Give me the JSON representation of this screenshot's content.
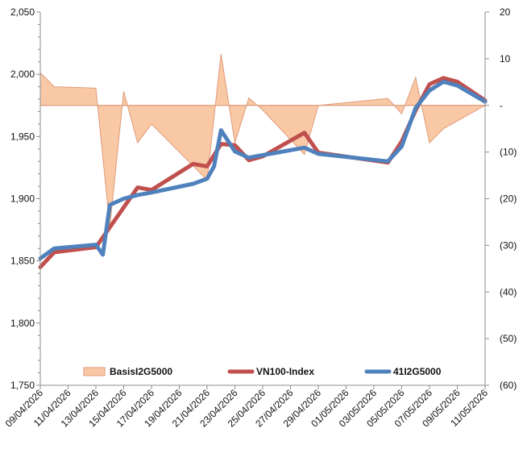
{
  "chart_data": {
    "type": "line",
    "x": [
      "09/04/2026",
      "10/04/2026",
      "13/04/2026",
      "14/04/2026",
      "15/04/2026",
      "16/04/2026",
      "17/04/2026",
      "18/04/2026",
      "21/04/2026",
      "22/04/2026",
      "23/04/2026",
      "24/04/2026",
      "25/04/2026",
      "26/04/2026",
      "28/04/2026",
      "29/04/2026",
      "04/05/2026",
      "05/05/2026",
      "06/05/2026",
      "07/05/2026",
      "08/05/2026",
      "09/05/2026",
      "11/05/2026"
    ],
    "x_ticks": [
      "09/04/2026",
      "11/04/2026",
      "13/04/2026",
      "15/04/2026",
      "17/04/2026",
      "19/04/2026",
      "21/04/2026",
      "23/04/2026",
      "25/04/2026",
      "27/04/2026",
      "29/04/2026",
      "01/05/2026",
      "03/05/2026",
      "05/05/2026",
      "07/05/2026",
      "09/05/2026",
      "11/05/2026"
    ],
    "xlim": [
      "09/04/2026",
      "11/05/2026"
    ],
    "y_left": {
      "ylim": [
        1750,
        2050
      ],
      "ticks": [
        "1,750",
        "1,800",
        "1,850",
        "1,900",
        "1,950",
        "2,000",
        "2,050"
      ]
    },
    "y_right": {
      "ylim": [
        -60,
        20
      ],
      "ticks": [
        "(60)",
        "(50)",
        "(40)",
        "(30)",
        "(20)",
        "(10)",
        "-",
        "10",
        "20"
      ]
    },
    "series": [
      {
        "name": "BasisI2G5000",
        "kind": "area",
        "axis": "right",
        "color": "#f9c9a6",
        "edge_color": "#e09a7a",
        "x": [
          "09/04/2026",
          "10/04/2026",
          "13/04/2026",
          "14/04/2026",
          "15/04/2026",
          "16/04/2026",
          "17/04/2026",
          "21/04/2026",
          "22/04/2026",
          "23/04/2026",
          "24/04/2026",
          "25/04/2026",
          "28/04/2026",
          "29/04/2026",
          "04/05/2026",
          "05/05/2026",
          "06/05/2026",
          "07/05/2026",
          "08/05/2026",
          "11/05/2026"
        ],
        "values": [
          7,
          4,
          3.7,
          -26,
          3,
          -8,
          -4,
          -16,
          11,
          -8,
          1.6,
          -1,
          -10.5,
          0,
          1.5,
          -1.8,
          6,
          -8,
          -5,
          0
        ]
      },
      {
        "name": "VN100-Index",
        "kind": "line",
        "axis": "left",
        "color": "#c0504d",
        "x": [
          "09/04/2026",
          "10/04/2026",
          "13/04/2026",
          "14/04/2026",
          "15/04/2026",
          "16/04/2026",
          "17/04/2026",
          "20/04/2026",
          "21/04/2026",
          "22/04/2026",
          "23/04/2026",
          "24/04/2026",
          "25/04/2026",
          "28/04/2026",
          "29/04/2026",
          "04/05/2026",
          "05/05/2026",
          "06/05/2026",
          "07/05/2026",
          "08/05/2026",
          "09/05/2026",
          "11/05/2026"
        ],
        "values": [
          1845,
          1857,
          1861,
          1877,
          1893,
          1909,
          1907,
          1928,
          1926,
          1944,
          1943,
          1931,
          1934,
          1953,
          1937,
          1929,
          1946,
          1971,
          1992,
          1997,
          1994,
          1979
        ]
      },
      {
        "name": "41I2G5000",
        "kind": "line",
        "axis": "left",
        "color": "#4f81bd",
        "x": [
          "09/04/2026",
          "10/04/2026",
          "13/04/2026",
          "13.5/04/2026",
          "14/04/2026",
          "15/04/2026",
          "16/04/2026",
          "17/04/2026",
          "20/04/2026",
          "21/04/2026",
          "21.5/04/2026",
          "22/04/2026",
          "23/04/2026",
          "24/04/2026",
          "25/04/2026",
          "28/04/2026",
          "29/04/2026",
          "04/05/2026",
          "05/05/2026",
          "06/05/2026",
          "07/05/2026",
          "08/05/2026",
          "09/05/2026",
          "11/05/2026"
        ],
        "values": [
          1852,
          1860,
          1863,
          1855,
          1895,
          1900,
          1903,
          1905,
          1912,
          1916,
          1926,
          1955,
          1938,
          1933,
          1935,
          1941,
          1936,
          1930,
          1942,
          1973,
          1987,
          1994,
          1991,
          1978
        ]
      }
    ],
    "legend": {
      "placement": "bottom-inside",
      "entries": [
        "BasisI2G5000",
        "VN100-Index",
        "41I2G5000"
      ]
    },
    "grid": false
  }
}
